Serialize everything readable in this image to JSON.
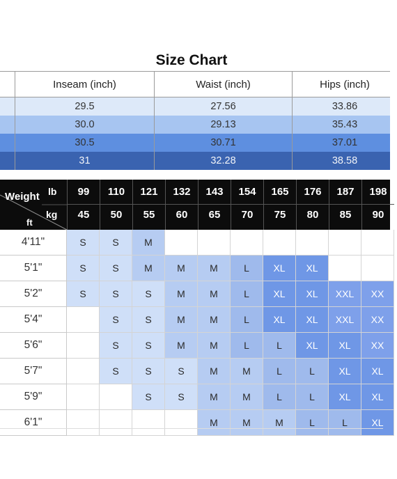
{
  "title": "Size Chart",
  "measurements": {
    "headers": [
      "Inseam (inch)",
      "Waist (inch)",
      "Hips (inch)"
    ],
    "rows": [
      [
        "29.5",
        "27.56",
        "33.86"
      ],
      [
        "30.0",
        "29.13",
        "35.43"
      ],
      [
        "30.5",
        "30.71",
        "37.01"
      ],
      [
        "31",
        "32.28",
        "38.58"
      ]
    ]
  },
  "grid": {
    "corner": {
      "weight_label": "Weight",
      "lb_label": "lb",
      "kg_label": "kg",
      "ft_label": "ft"
    },
    "weights_lb": [
      "99",
      "110",
      "121",
      "132",
      "143",
      "154",
      "165",
      "176",
      "187",
      "198"
    ],
    "weights_kg": [
      "45",
      "50",
      "55",
      "60",
      "65",
      "70",
      "75",
      "80",
      "85",
      "90"
    ],
    "heights": [
      "4'11\"",
      "5'1\"",
      "5'2\"",
      "5'4\"",
      "5'6\"",
      "5'7\"",
      "5'9\"",
      "6'1\""
    ],
    "sizes": [
      [
        "S",
        "S",
        "M",
        "",
        "",
        "",
        "",
        "",
        "",
        ""
      ],
      [
        "S",
        "S",
        "M",
        "M",
        "M",
        "L",
        "XL",
        "XL",
        "",
        ""
      ],
      [
        "S",
        "S",
        "S",
        "M",
        "M",
        "L",
        "XL",
        "XL",
        "XXL",
        "XX"
      ],
      [
        "",
        "S",
        "S",
        "M",
        "M",
        "L",
        "XL",
        "XL",
        "XXL",
        "XX"
      ],
      [
        "",
        "S",
        "S",
        "M",
        "M",
        "L",
        "L",
        "XL",
        "XL",
        "XX"
      ],
      [
        "",
        "S",
        "S",
        "S",
        "M",
        "M",
        "L",
        "L",
        "XL",
        "XL"
      ],
      [
        "",
        "",
        "S",
        "S",
        "M",
        "M",
        "L",
        "L",
        "XL",
        "XL"
      ],
      [
        "",
        "",
        "",
        "",
        "M",
        "M",
        "M",
        "L",
        "L",
        "XL"
      ]
    ]
  },
  "colors": {
    "header_bg": "#0c0c0c",
    "size_S": "#cfdff8",
    "size_M": "#b6ccf2",
    "size_L": "#9fbaec",
    "size_XL": "#6f97e6"
  }
}
